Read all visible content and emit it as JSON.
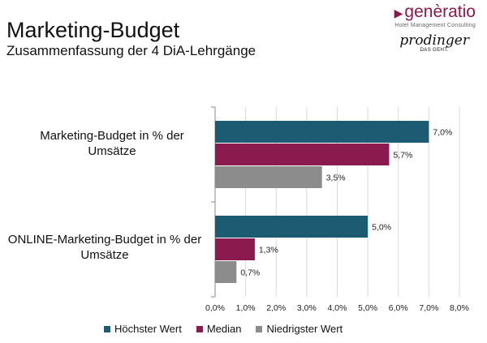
{
  "header": {
    "title": "Marketing-Budget",
    "subtitle": "Zusammenfassung der 4 DiA-Lehrgänge"
  },
  "logos": {
    "generatio_name": "genèratio",
    "generatio_tagline": "Hotel Management Consulting",
    "prodinger_name": "prodinger",
    "prodinger_claim": "DAS GEHT."
  },
  "chart_data": {
    "type": "bar",
    "orientation": "horizontal",
    "categories": [
      "Marketing-Budget in % der Umsätze",
      "ONLINE-Marketing-Budget in % der Umsätze"
    ],
    "series": [
      {
        "name": "Höchster Wert",
        "color": "#1d5b72",
        "values": [
          7.0,
          5.0
        ],
        "labels": [
          "7,0%",
          "5,0%"
        ]
      },
      {
        "name": "Median",
        "color": "#8b1b4f",
        "values": [
          5.7,
          1.3
        ],
        "labels": [
          "5,7%",
          "1,3%"
        ]
      },
      {
        "name": "Niedrigster Wert",
        "color": "#8c8c8c",
        "values": [
          3.5,
          0.7
        ],
        "labels": [
          "3,5%",
          "0,7%"
        ]
      }
    ],
    "xlim": [
      0,
      8
    ],
    "xticks": [
      0,
      1,
      2,
      3,
      4,
      5,
      6,
      7,
      8
    ],
    "xtick_labels": [
      "0,0%",
      "1,0%",
      "2,0%",
      "3,0%",
      "4,0%",
      "5,0%",
      "6,0%",
      "7,0%",
      "8,0%"
    ],
    "grid": true,
    "legend_position": "bottom"
  }
}
